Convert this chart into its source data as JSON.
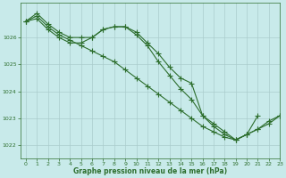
{
  "background_color": "#c8eaea",
  "grid_color": "#aacccc",
  "line_color": "#2d6e2d",
  "marker_color": "#2d6e2d",
  "xlabel": "Graphe pression niveau de la mer (hPa)",
  "ylim_min": 1021.5,
  "ylim_max": 1027.3,
  "xlim_min": -0.5,
  "xlim_max": 23,
  "yticks": [
    1022,
    1023,
    1024,
    1025,
    1026
  ],
  "xticks": [
    0,
    1,
    2,
    3,
    4,
    5,
    6,
    7,
    8,
    9,
    10,
    11,
    12,
    13,
    14,
    15,
    16,
    17,
    18,
    19,
    20,
    21,
    22,
    23
  ],
  "series1_x": [
    0,
    1,
    2,
    3,
    4,
    5,
    6,
    7,
    8,
    9,
    10,
    11,
    12,
    13,
    14,
    15,
    16,
    17,
    18,
    19,
    20,
    21
  ],
  "series1_y": [
    1026.6,
    1026.9,
    1026.5,
    1026.2,
    1026.0,
    1026.0,
    1026.0,
    1026.3,
    1026.4,
    1026.4,
    1026.2,
    1025.8,
    1025.4,
    1024.9,
    1024.5,
    1024.3,
    1023.1,
    1022.8,
    1022.5,
    1022.2,
    1022.4,
    1023.1
  ],
  "series2_x": [
    0,
    1,
    2,
    3,
    4,
    5,
    6,
    7,
    8,
    9,
    10,
    11,
    12,
    13,
    14,
    15,
    16,
    17,
    18,
    19,
    20,
    21,
    22,
    23
  ],
  "series2_y": [
    1026.6,
    1026.8,
    1026.4,
    1026.1,
    1025.9,
    1025.7,
    1025.5,
    1025.3,
    1025.1,
    1024.8,
    1024.5,
    1024.2,
    1023.9,
    1023.6,
    1023.3,
    1023.0,
    1022.7,
    1022.5,
    1022.3,
    1022.2,
    1022.4,
    1022.6,
    1022.9,
    1023.1
  ],
  "series3_x": [
    0,
    1,
    2,
    3,
    4,
    5,
    6,
    7,
    8,
    9,
    10,
    11,
    12,
    13,
    14,
    15,
    16,
    17,
    18,
    19,
    20,
    21,
    22,
    23
  ],
  "series3_y": [
    1026.6,
    1026.7,
    1026.3,
    1026.0,
    1025.8,
    1025.8,
    1026.0,
    1026.3,
    1026.4,
    1026.4,
    1026.1,
    1025.7,
    1025.1,
    1024.6,
    1024.1,
    1023.7,
    1023.1,
    1022.7,
    1022.4,
    1022.2,
    1022.4,
    1022.6,
    1022.8,
    1023.1
  ]
}
